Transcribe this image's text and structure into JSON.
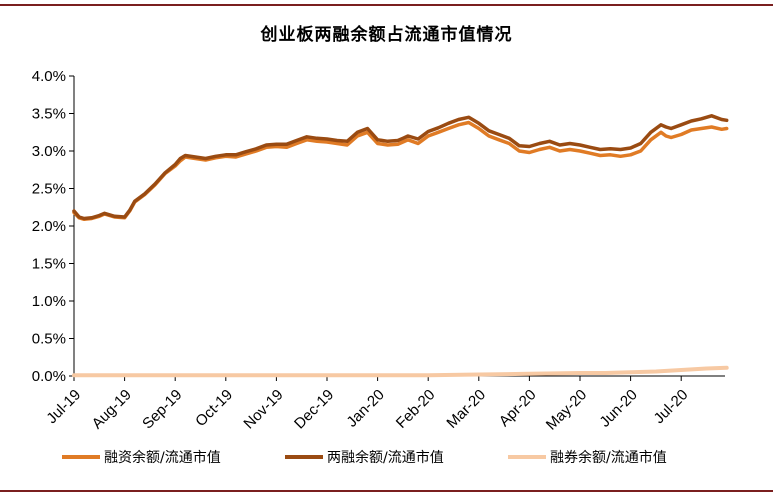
{
  "title": "创业板两融余额占流通市值情况",
  "colors": {
    "financing": "#e07b25",
    "total": "#9a4b12",
    "securities_lending": "#f7c9a3",
    "frame": "#7a1f1f"
  },
  "chart_data": {
    "type": "line",
    "title": "创业板两融余额占流通市值情况",
    "xlabel": "",
    "ylabel": "",
    "x_ticks": [
      "Jul-19",
      "Aug-19",
      "Sep-19",
      "Oct-19",
      "Nov-19",
      "Dec-19",
      "Jan-20",
      "Feb-20",
      "Mar-20",
      "Apr-20",
      "May-20",
      "Jun-20",
      "Jul-20"
    ],
    "y_ticks": [
      "4.0%",
      "3.5%",
      "3.0%",
      "2.5%",
      "2.0%",
      "1.5%",
      "1.0%",
      "0.5%",
      "0.0%"
    ],
    "ylim": [
      0,
      4.0
    ],
    "y_unit": "%",
    "grid": false,
    "legend_position": "bottom",
    "x_note": "x values are months since Jul-19 (0 = Jul-19)",
    "series": [
      {
        "name": "融资余额/流通市值",
        "color_key": "financing",
        "x": [
          0,
          0.1,
          0.2,
          0.35,
          0.5,
          0.6,
          0.8,
          1.0,
          1.1,
          1.2,
          1.4,
          1.6,
          1.8,
          2.0,
          2.1,
          2.2,
          2.4,
          2.6,
          2.8,
          3.0,
          3.2,
          3.4,
          3.6,
          3.8,
          4.0,
          4.2,
          4.4,
          4.6,
          4.8,
          5.0,
          5.2,
          5.4,
          5.6,
          5.8,
          6.0,
          6.2,
          6.4,
          6.5,
          6.6,
          6.8,
          7.0,
          7.2,
          7.4,
          7.6,
          7.8,
          8.0,
          8.2,
          8.4,
          8.6,
          8.8,
          9.0,
          9.2,
          9.4,
          9.6,
          9.8,
          10.0,
          10.2,
          10.4,
          10.6,
          10.8,
          11.0,
          11.2,
          11.4,
          11.6,
          11.7,
          11.8,
          12.0,
          12.2,
          12.4,
          12.6,
          12.8,
          12.9
        ],
        "values": [
          2.18,
          2.11,
          2.09,
          2.1,
          2.13,
          2.16,
          2.12,
          2.11,
          2.2,
          2.32,
          2.42,
          2.55,
          2.7,
          2.8,
          2.87,
          2.92,
          2.9,
          2.88,
          2.91,
          2.93,
          2.92,
          2.96,
          3.0,
          3.05,
          3.06,
          3.05,
          3.1,
          3.15,
          3.13,
          3.12,
          3.1,
          3.08,
          3.2,
          3.25,
          3.1,
          3.08,
          3.09,
          3.12,
          3.15,
          3.1,
          3.2,
          3.25,
          3.3,
          3.35,
          3.38,
          3.3,
          3.2,
          3.15,
          3.1,
          3.0,
          2.98,
          3.02,
          3.05,
          3.0,
          3.02,
          3.0,
          2.97,
          2.94,
          2.95,
          2.93,
          2.95,
          3.0,
          3.15,
          3.25,
          3.2,
          3.18,
          3.22,
          3.28,
          3.3,
          3.32,
          3.29,
          3.3
        ]
      },
      {
        "name": "两融余额/流通市值",
        "color_key": "total",
        "x": [
          0,
          0.1,
          0.2,
          0.35,
          0.5,
          0.6,
          0.8,
          1.0,
          1.1,
          1.2,
          1.4,
          1.6,
          1.8,
          2.0,
          2.1,
          2.2,
          2.4,
          2.6,
          2.8,
          3.0,
          3.2,
          3.4,
          3.6,
          3.8,
          4.0,
          4.2,
          4.4,
          4.6,
          4.8,
          5.0,
          5.2,
          5.4,
          5.6,
          5.8,
          6.0,
          6.2,
          6.4,
          6.5,
          6.6,
          6.8,
          7.0,
          7.2,
          7.4,
          7.6,
          7.8,
          8.0,
          8.2,
          8.4,
          8.6,
          8.8,
          9.0,
          9.2,
          9.4,
          9.6,
          9.8,
          10.0,
          10.2,
          10.4,
          10.6,
          10.8,
          11.0,
          11.2,
          11.4,
          11.6,
          11.7,
          11.8,
          12.0,
          12.2,
          12.4,
          12.6,
          12.8,
          12.9
        ],
        "values": [
          2.2,
          2.12,
          2.1,
          2.11,
          2.14,
          2.17,
          2.13,
          2.12,
          2.21,
          2.33,
          2.43,
          2.56,
          2.71,
          2.82,
          2.9,
          2.94,
          2.92,
          2.9,
          2.93,
          2.95,
          2.95,
          2.99,
          3.03,
          3.08,
          3.09,
          3.09,
          3.14,
          3.19,
          3.17,
          3.16,
          3.14,
          3.13,
          3.25,
          3.3,
          3.15,
          3.13,
          3.14,
          3.17,
          3.2,
          3.16,
          3.26,
          3.31,
          3.37,
          3.42,
          3.45,
          3.37,
          3.27,
          3.22,
          3.17,
          3.07,
          3.06,
          3.1,
          3.13,
          3.08,
          3.1,
          3.08,
          3.05,
          3.02,
          3.03,
          3.02,
          3.04,
          3.1,
          3.25,
          3.35,
          3.32,
          3.3,
          3.35,
          3.4,
          3.43,
          3.47,
          3.42,
          3.41
        ]
      },
      {
        "name": "融券余额/流通市值",
        "color_key": "securities_lending",
        "x": [
          0,
          1,
          2,
          3,
          4,
          5,
          6,
          7,
          8,
          9,
          10,
          10.5,
          11,
          11.5,
          12,
          12.5,
          12.9
        ],
        "values": [
          0.01,
          0.01,
          0.01,
          0.01,
          0.01,
          0.01,
          0.01,
          0.01,
          0.02,
          0.03,
          0.04,
          0.04,
          0.05,
          0.06,
          0.08,
          0.1,
          0.11
        ]
      }
    ]
  }
}
